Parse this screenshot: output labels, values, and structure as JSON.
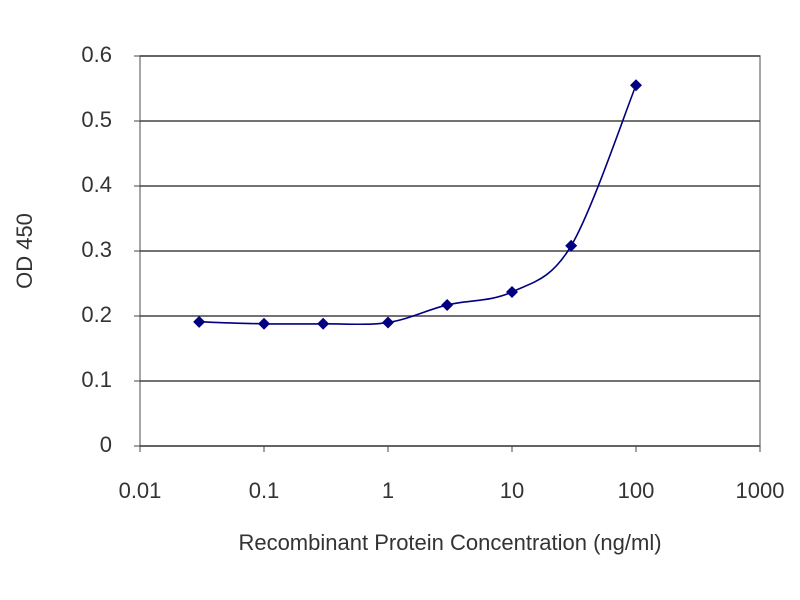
{
  "chart_data": {
    "type": "line",
    "x_label": "Recombinant Protein Concentration (ng/ml)",
    "y_label": "OD 450",
    "x": [
      0.03,
      0.1,
      0.3,
      1,
      3,
      10,
      30,
      100
    ],
    "series": [
      {
        "color": "#000080",
        "values": [
          0.191,
          0.188,
          0.188,
          0.19,
          0.217,
          0.237,
          0.308,
          0.555
        ]
      }
    ],
    "xlim": [
      0.01,
      1000
    ],
    "xticks": [
      0.01,
      0.1,
      1,
      10,
      100,
      1000
    ],
    "xscale": "log",
    "ylim": [
      0,
      0.6
    ],
    "yticks": [
      0,
      0.1,
      0.2,
      0.3,
      0.4,
      0.5,
      0.6
    ],
    "grid": true
  }
}
